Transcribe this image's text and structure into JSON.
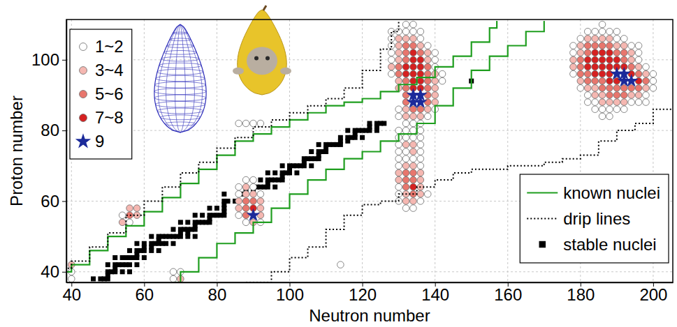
{
  "chart_data": {
    "type": "scatter",
    "x_label": "Neutron number",
    "y_label": "Proton number",
    "xlim": [
      38.6,
      205.4
    ],
    "ylim": [
      37,
      111.4
    ],
    "xticks": [
      40,
      60,
      80,
      100,
      120,
      140,
      160,
      180,
      200
    ],
    "yticks": [
      40,
      60,
      80,
      100
    ],
    "grid": true,
    "series": [
      {
        "name": "1~2",
        "type": "scatter",
        "marker": "circle",
        "color": "#ffffff",
        "legend": "upper left",
        "x": [
          54,
          56,
          88,
          90,
          86,
          90,
          86,
          92,
          86,
          88,
          92,
          86,
          88,
          90,
          92,
          114,
          68,
          70,
          68,
          40,
          40,
          132,
          134,
          128,
          130,
          132,
          134,
          136,
          128,
          136,
          128,
          138,
          128,
          140,
          128,
          140,
          140,
          128,
          142,
          142,
          130,
          140,
          130,
          138,
          132,
          134,
          136,
          130,
          132,
          134,
          136,
          130,
          132,
          134,
          136,
          130,
          136,
          130,
          132,
          136,
          130,
          132,
          134,
          136,
          130,
          136,
          130,
          130,
          138,
          130,
          136,
          132,
          134,
          186,
          182,
          184,
          186,
          188,
          190,
          180,
          190,
          192,
          178,
          194,
          196,
          178,
          196,
          196,
          198,
          178,
          200,
          200,
          180,
          200,
          182,
          198,
          182,
          184,
          194,
          196,
          198,
          184,
          186,
          188,
          190,
          192,
          186,
          188
        ],
        "values": [
          56,
          54,
          66,
          66,
          64,
          64,
          62,
          62,
          56,
          54,
          54,
          82,
          82,
          82,
          82,
          42,
          40,
          40,
          38,
          38,
          40,
          110,
          110,
          108,
          108,
          108,
          108,
          108,
          106,
          106,
          104,
          104,
          102,
          102,
          100,
          100,
          98,
          96,
          96,
          94,
          86,
          86,
          84,
          84,
          82,
          82,
          82,
          80,
          80,
          80,
          80,
          78,
          78,
          78,
          78,
          76,
          76,
          74,
          74,
          74,
          72,
          72,
          72,
          72,
          70,
          70,
          64,
          62,
          62,
          60,
          60,
          58,
          58,
          110,
          108,
          108,
          108,
          108,
          108,
          106,
          106,
          106,
          104,
          104,
          104,
          102,
          102,
          100,
          98,
          96,
          96,
          94,
          92,
          92,
          90,
          90,
          88,
          88,
          88,
          88,
          88,
          86,
          86,
          86,
          86,
          86,
          84,
          84
        ]
      },
      {
        "name": "3~4",
        "type": "scatter",
        "marker": "circle",
        "color": "#f5b7b1",
        "legend": "upper left",
        "x": [
          56,
          58,
          58,
          54,
          88,
          88,
          90,
          86,
          92,
          86,
          92,
          92,
          90,
          70,
          40,
          130,
          132,
          134,
          130,
          136,
          130,
          138,
          130,
          138,
          128,
          140,
          130,
          140,
          130,
          140,
          140,
          140,
          132,
          138,
          132,
          134,
          136,
          132,
          134,
          134,
          132,
          134,
          130,
          136,
          130,
          136,
          136,
          132,
          136,
          132,
          134,
          182,
          184,
          186,
          188,
          180,
          190,
          192,
          180,
          194,
          178,
          194,
          178,
          196,
          198,
          180,
          182,
          184,
          198,
          184,
          186,
          194,
          196,
          186,
          188,
          190,
          192
        ],
        "values": [
          58,
          58,
          56,
          54,
          64,
          62,
          62,
          60,
          60,
          58,
          58,
          56,
          54,
          38,
          42,
          106,
          106,
          106,
          104,
          104,
          102,
          102,
          100,
          100,
          98,
          96,
          94,
          94,
          92,
          92,
          90,
          88,
          86,
          86,
          84,
          84,
          84,
          76,
          76,
          74,
          70,
          70,
          68,
          68,
          66,
          66,
          64,
          62,
          62,
          60,
          60,
          106,
          106,
          106,
          106,
          104,
          104,
          104,
          102,
          102,
          100,
          100,
          98,
          98,
          96,
          94,
          92,
          92,
          92,
          90,
          90,
          90,
          90,
          88,
          88,
          88,
          88
        ]
      },
      {
        "name": "5~6",
        "type": "scatter",
        "marker": "circle",
        "color": "#e8766d",
        "legend": "upper left",
        "x": [
          56,
          88,
          90,
          88,
          88,
          132,
          134,
          132,
          136,
          132,
          130,
          138,
          130,
          138,
          132,
          138,
          132,
          138,
          132,
          138,
          132,
          138,
          134,
          136,
          132,
          134,
          132,
          134,
          132,
          134,
          182,
          184,
          186,
          188,
          182,
          190,
          192,
          180,
          192,
          180,
          194,
          180,
          182,
          196,
          182,
          184,
          186,
          198,
          186,
          188,
          190,
          192,
          194,
          196,
          188,
          190,
          192
        ],
        "values": [
          56,
          60,
          60,
          58,
          56,
          104,
          104,
          102,
          102,
          100,
          98,
          98,
          96,
          96,
          94,
          94,
          92,
          92,
          90,
          90,
          88,
          88,
          86,
          86,
          68,
          68,
          66,
          66,
          64,
          62,
          104,
          104,
          104,
          104,
          102,
          102,
          102,
          100,
          100,
          98,
          98,
          96,
          96,
          96,
          94,
          94,
          94,
          94,
          92,
          92,
          92,
          92,
          92,
          92,
          90,
          90,
          90
        ]
      },
      {
        "name": "7~8",
        "type": "scatter",
        "marker": "circle",
        "color": "#d62020",
        "legend": "upper left",
        "x": [
          90,
          134,
          134,
          136,
          132,
          134,
          136,
          132,
          134,
          136,
          134,
          136,
          134,
          136,
          134,
          184,
          186,
          188,
          182,
          184,
          186,
          188,
          190,
          182,
          184,
          186,
          188,
          190,
          192,
          184,
          186,
          188,
          194,
          188,
          190,
          196
        ],
        "values": [
          58,
          102,
          100,
          100,
          98,
          98,
          98,
          96,
          96,
          96,
          94,
          94,
          92,
          92,
          64,
          102,
          102,
          102,
          100,
          100,
          100,
          100,
          100,
          98,
          98,
          98,
          98,
          98,
          98,
          96,
          96,
          96,
          96,
          94,
          94,
          94
        ]
      },
      {
        "name": "9",
        "type": "scatter",
        "marker": "star",
        "color": "#1b2a9a",
        "legend": "upper left",
        "x": [
          90,
          134,
          136,
          134,
          136,
          190,
          192,
          192,
          194
        ],
        "values": [
          56,
          90,
          90,
          88,
          88,
          96,
          96,
          94,
          94
        ]
      },
      {
        "name": "known nuclei",
        "type": "line",
        "line_style": "solid",
        "color": "#1f9e1f",
        "legend": "lower right",
        "x": [
          38,
          40,
          45,
          50,
          55,
          60,
          65,
          70,
          75,
          80,
          85,
          90,
          95,
          100,
          105,
          110,
          115,
          120,
          125,
          130,
          135,
          140,
          145,
          150,
          155,
          157,
          68,
          68,
          70,
          75,
          80,
          85,
          90,
          95,
          100,
          105,
          110,
          115,
          120,
          125,
          130,
          135,
          140,
          145,
          150,
          155,
          160,
          165,
          170
        ],
        "values": [
          40,
          42,
          46,
          50,
          53,
          57,
          61,
          65,
          69,
          73,
          77,
          79,
          81,
          83,
          85,
          87,
          88,
          89,
          91,
          93,
          95,
          98,
          101,
          105,
          109,
          111,
          null,
          37,
          40,
          44,
          48,
          51,
          54,
          58,
          62,
          66,
          69,
          72,
          74,
          77,
          79,
          82,
          87,
          92,
          97,
          101,
          104,
          108,
          111
        ]
      },
      {
        "name": "drip lines",
        "type": "line",
        "line_style": "dotted",
        "color": "#000000",
        "legend": "lower right",
        "x": [
          38,
          40,
          45,
          50,
          55,
          60,
          65,
          70,
          75,
          80,
          85,
          90,
          95,
          100,
          105,
          110,
          115,
          120,
          125,
          128,
          130,
          88,
          88,
          95,
          100,
          105,
          110,
          115,
          120,
          125,
          130,
          135,
          140,
          145,
          150,
          160,
          170,
          175,
          180,
          185,
          190,
          195,
          200,
          206
        ],
        "values": [
          41,
          43,
          47,
          51,
          56,
          60,
          64,
          68,
          71,
          75,
          78,
          81,
          83,
          85,
          87,
          89,
          92,
          97,
          103,
          108,
          111,
          null,
          37,
          40,
          44,
          47,
          52,
          56,
          59,
          60,
          62,
          64,
          66,
          68,
          69,
          70,
          71,
          72,
          73,
          77,
          80,
          82,
          86,
          89
        ]
      },
      {
        "name": "stable nuclei",
        "type": "scatter",
        "marker": "square",
        "color": "#000000",
        "legend": "lower right",
        "x": [
          46,
          48,
          49,
          50,
          50,
          50,
          51,
          52,
          54,
          56,
          52,
          50,
          52,
          53,
          54,
          55,
          56,
          58,
          52,
          54,
          55,
          56,
          57,
          58,
          60,
          58,
          56,
          58,
          59,
          60,
          62,
          64,
          60,
          62,
          58,
          60,
          62,
          63,
          64,
          65,
          66,
          68,
          64,
          62,
          64,
          65,
          66,
          67,
          68,
          69,
          70,
          72,
          74,
          70,
          72,
          68,
          70,
          71,
          72,
          73,
          74,
          74,
          70,
          72,
          74,
          75,
          76,
          77,
          78,
          78,
          74,
          76,
          78,
          79,
          80,
          81,
          82,
          82,
          78,
          80,
          82,
          82,
          82,
          83,
          85,
          82,
          87,
          88,
          90,
          92,
          88,
          90,
          90,
          91,
          92,
          93,
          94,
          96,
          94,
          90,
          92,
          94,
          95,
          96,
          97,
          98,
          98,
          94,
          96,
          98,
          99,
          100,
          102,
          100,
          98,
          100,
          101,
          102,
          103,
          104,
          106,
          104,
          104,
          105,
          106,
          107,
          108,
          108,
          106,
          108,
          109,
          110,
          110,
          108,
          110,
          111,
          112,
          113,
          114,
          114,
          116,
          114,
          116,
          117,
          118,
          120,
          118,
          116,
          118,
          119,
          120,
          121,
          122,
          124,
          122,
          124,
          122,
          124,
          125,
          126,
          150
        ],
        "values": [
          38,
          38,
          38,
          38,
          39,
          40,
          40,
          40,
          40,
          40,
          41,
          42,
          42,
          42,
          42,
          42,
          42,
          42,
          44,
          44,
          44,
          44,
          44,
          44,
          44,
          45,
          46,
          46,
          46,
          46,
          46,
          46,
          47,
          47,
          48,
          48,
          48,
          48,
          48,
          48,
          48,
          48,
          49,
          50,
          50,
          50,
          50,
          50,
          50,
          50,
          50,
          50,
          50,
          51,
          51,
          52,
          52,
          52,
          52,
          52,
          52,
          53,
          54,
          54,
          54,
          54,
          54,
          54,
          54,
          55,
          56,
          56,
          56,
          56,
          56,
          56,
          56,
          57,
          58,
          58,
          58,
          59,
          60,
          60,
          60,
          62,
          62,
          62,
          62,
          62,
          63,
          63,
          64,
          64,
          64,
          64,
          64,
          64,
          65,
          66,
          66,
          66,
          66,
          66,
          66,
          66,
          67,
          68,
          68,
          68,
          68,
          68,
          68,
          69,
          70,
          70,
          70,
          70,
          70,
          70,
          70,
          71,
          72,
          72,
          72,
          72,
          72,
          73,
          74,
          74,
          74,
          74,
          75,
          76,
          76,
          76,
          76,
          76,
          76,
          77,
          77,
          78,
          78,
          78,
          78,
          78,
          79,
          80,
          80,
          80,
          80,
          80,
          80,
          80,
          81,
          81,
          82,
          82,
          82,
          82,
          94
        ]
      }
    ]
  }
}
